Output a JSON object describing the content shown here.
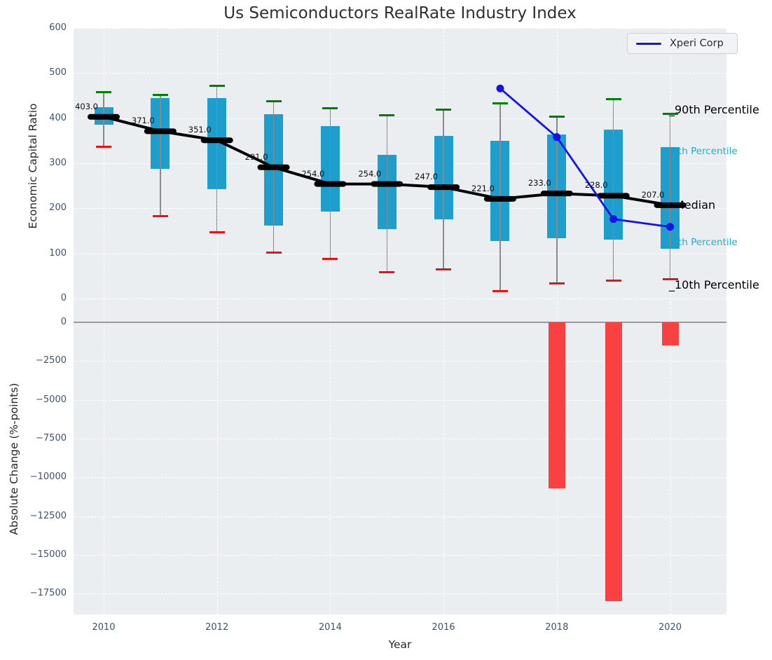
{
  "title": "Us Semiconductors RealRate Industry Index",
  "axes": {
    "x_label": "Year",
    "x_ticks": [
      2010,
      2012,
      2014,
      2016,
      2018,
      2020
    ],
    "top": {
      "y_label": "Economic Capital Ratio",
      "y_ticks": [
        600,
        500,
        400,
        300,
        200,
        100,
        0
      ],
      "ylim": [
        0,
        600
      ]
    },
    "bottom": {
      "y_label": "Absolute Change (%-points)",
      "y_ticks": [
        0,
        -2500,
        -5000,
        -7500,
        -10000,
        -12500,
        -15000,
        -17500
      ],
      "ylim": [
        1200,
        -18870
      ]
    }
  },
  "legend": {
    "label": "Xperi Corp",
    "line_color": "#1414e8"
  },
  "colors": {
    "box_fill": "#1d9ecd",
    "p90_cap": "#008000",
    "p10_cap": "#ee1111",
    "median": "#000000",
    "company_line": "#1414e8",
    "change_bar": "#fa4141",
    "cyan_label": "#17b0d6",
    "panel_bg": "#ebeef1"
  },
  "chart_data": [
    {
      "type": "boxplot",
      "title": "Us Semiconductors RealRate Industry Index",
      "xlabel": "Year",
      "ylabel": "Economic Capital Ratio",
      "ylim": [
        0,
        600
      ],
      "grid": true,
      "years": [
        2010,
        2011,
        2012,
        2013,
        2014,
        2015,
        2016,
        2017,
        2018,
        2019,
        2020
      ],
      "p90": [
        457,
        452,
        471,
        438,
        422,
        407,
        419,
        433,
        404,
        443,
        409
      ],
      "q3": [
        424,
        445,
        445,
        409,
        382,
        319,
        360,
        350,
        363,
        374,
        336
      ],
      "median": [
        403,
        371,
        351,
        291,
        254,
        254,
        247,
        221,
        233,
        228,
        207
      ],
      "q1": [
        385,
        288,
        242,
        161,
        192,
        154,
        175,
        127,
        133,
        130,
        110
      ],
      "p10": [
        336,
        182,
        147,
        102,
        88,
        59,
        65,
        16,
        33,
        39,
        42
      ],
      "median_labels": [
        "403.0",
        "371.0",
        "351.0",
        "291.0",
        "254.0",
        "254.0",
        "247.0",
        "221.0",
        "233.0",
        "228.0",
        "207.0"
      ],
      "series": [
        {
          "name": "Xperi Corp",
          "type": "line",
          "x": [
            2017,
            2018,
            2019,
            2020
          ],
          "y": [
            466,
            358,
            176,
            159
          ],
          "color": "#1414e8"
        }
      ],
      "annotations": [
        {
          "text": "_90th Percentile",
          "value": 418,
          "color": "#000000",
          "size": 16,
          "x": 850
        },
        {
          "text": "_75th Percentile",
          "value": 326,
          "color": "#17b0d6",
          "size": 13.5,
          "x": 839
        },
        {
          "text": "_Median",
          "value": 207,
          "color": "#000000",
          "size": 16,
          "x": 850
        },
        {
          "text": "_25th Percentile",
          "value": 123,
          "color": "#17b0d6",
          "size": 13.5,
          "x": 839
        },
        {
          "text": "_10th Percentile",
          "value": 30,
          "color": "#000000",
          "size": 16,
          "x": 850
        }
      ],
      "legend_position": "upper right"
    },
    {
      "type": "bar",
      "xlabel": "Year",
      "ylabel": "Absolute Change (%-points)",
      "ylim": [
        1200,
        -18870
      ],
      "grid": true,
      "x": [
        2018,
        2019,
        2020
      ],
      "values": [
        -10700,
        -18000,
        -1500
      ],
      "color": "#fa4141"
    }
  ]
}
